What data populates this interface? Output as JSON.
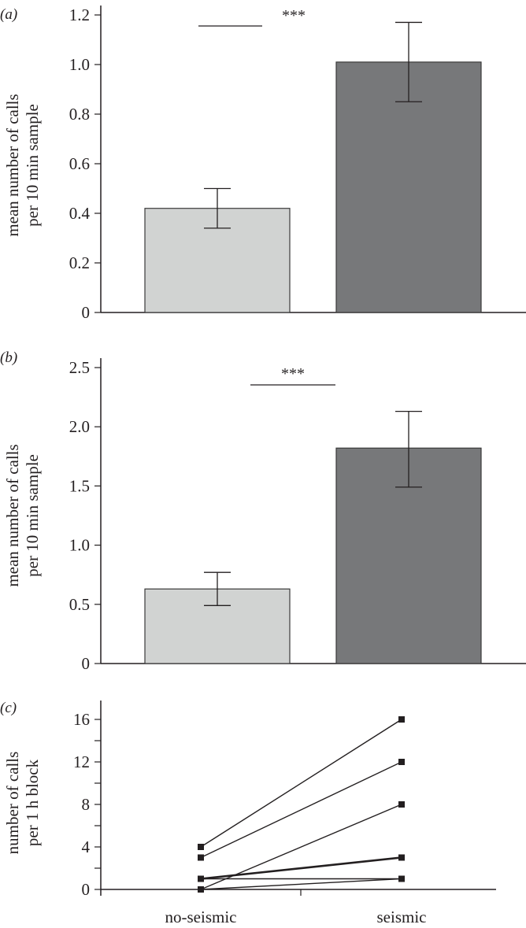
{
  "chart_data": [
    {
      "type": "bar",
      "panel_label": "(a)",
      "ylabel": [
        "mean number of calls",
        "per 10 min sample"
      ],
      "categories": [
        "no-seismic",
        "seismic"
      ],
      "values": [
        0.42,
        1.01
      ],
      "error_low": [
        0.34,
        0.85
      ],
      "error_high": [
        0.5,
        1.17
      ],
      "ylim": [
        0,
        1.2
      ],
      "yticks": [
        "0",
        "0.2",
        "0.4",
        "0.6",
        "0.8",
        "1.0",
        "1.2"
      ],
      "ytick_values": [
        0,
        0.2,
        0.4,
        0.6,
        0.8,
        1.0,
        1.2
      ],
      "colors": [
        "#d1d3d2",
        "#77787a"
      ],
      "significance": "***",
      "grid": false
    },
    {
      "type": "bar",
      "panel_label": "(b)",
      "ylabel": [
        "mean number of calls",
        "per 10 min sample"
      ],
      "categories": [
        "no-seismic",
        "seismic"
      ],
      "values": [
        0.63,
        1.82
      ],
      "error_low": [
        0.49,
        1.49
      ],
      "error_high": [
        0.77,
        2.13
      ],
      "ylim": [
        0,
        2.5
      ],
      "yticks": [
        "0",
        "0.5",
        "1.0",
        "1.5",
        "2.0",
        "2.5"
      ],
      "ytick_values": [
        0,
        0.5,
        1.0,
        1.5,
        2.0,
        2.5
      ],
      "colors": [
        "#d1d3d2",
        "#77787a"
      ],
      "significance": "***",
      "grid": false
    },
    {
      "type": "line",
      "panel_label": "(c)",
      "ylabel": [
        "number of calls",
        "per 1 h block"
      ],
      "categories": [
        "no-seismic",
        "seismic"
      ],
      "series": [
        {
          "values": [
            4,
            16
          ]
        },
        {
          "values": [
            3,
            12
          ]
        },
        {
          "values": [
            0,
            8
          ]
        },
        {
          "values": [
            1,
            3
          ]
        },
        {
          "values": [
            1,
            1
          ]
        },
        {
          "values": [
            0,
            1
          ]
        }
      ],
      "ylim": [
        0,
        16
      ],
      "yticks": [
        "0",
        "4",
        "8",
        "12",
        "16"
      ],
      "ytick_values": [
        0,
        4,
        8,
        12,
        16
      ],
      "minor_ytick_values": [
        2,
        6,
        10,
        14
      ],
      "grid": false
    }
  ]
}
